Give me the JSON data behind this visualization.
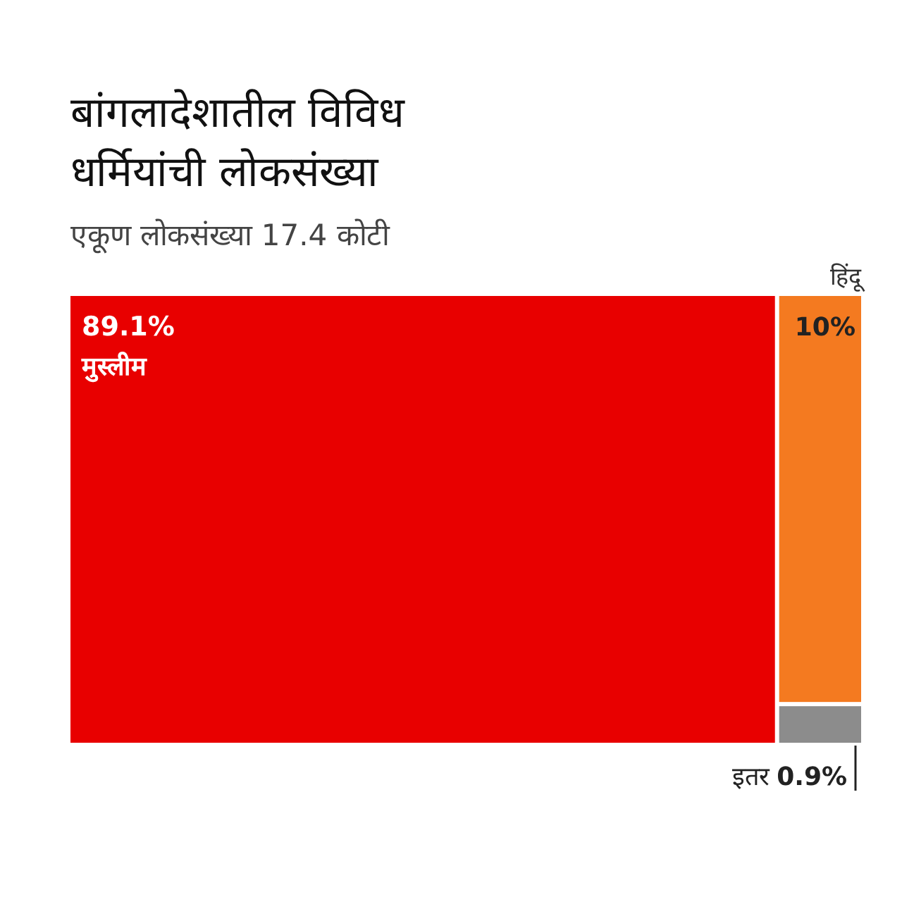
{
  "chart_data": {
    "type": "other",
    "title": "बांगलादेशातील विविध धर्मियांची लोकसंख्या",
    "subtitle": "एकूण लोकसंख्या 17.4 कोटी",
    "categories": [
      "मुस्लीम",
      "हिंदू",
      "इतर"
    ],
    "values": [
      89.1,
      10,
      0.9
    ],
    "value_labels": [
      "89.1%",
      "10%",
      "0.9%"
    ],
    "colors": [
      "#e80000",
      "#f47a20",
      "#8c8c8c"
    ]
  }
}
